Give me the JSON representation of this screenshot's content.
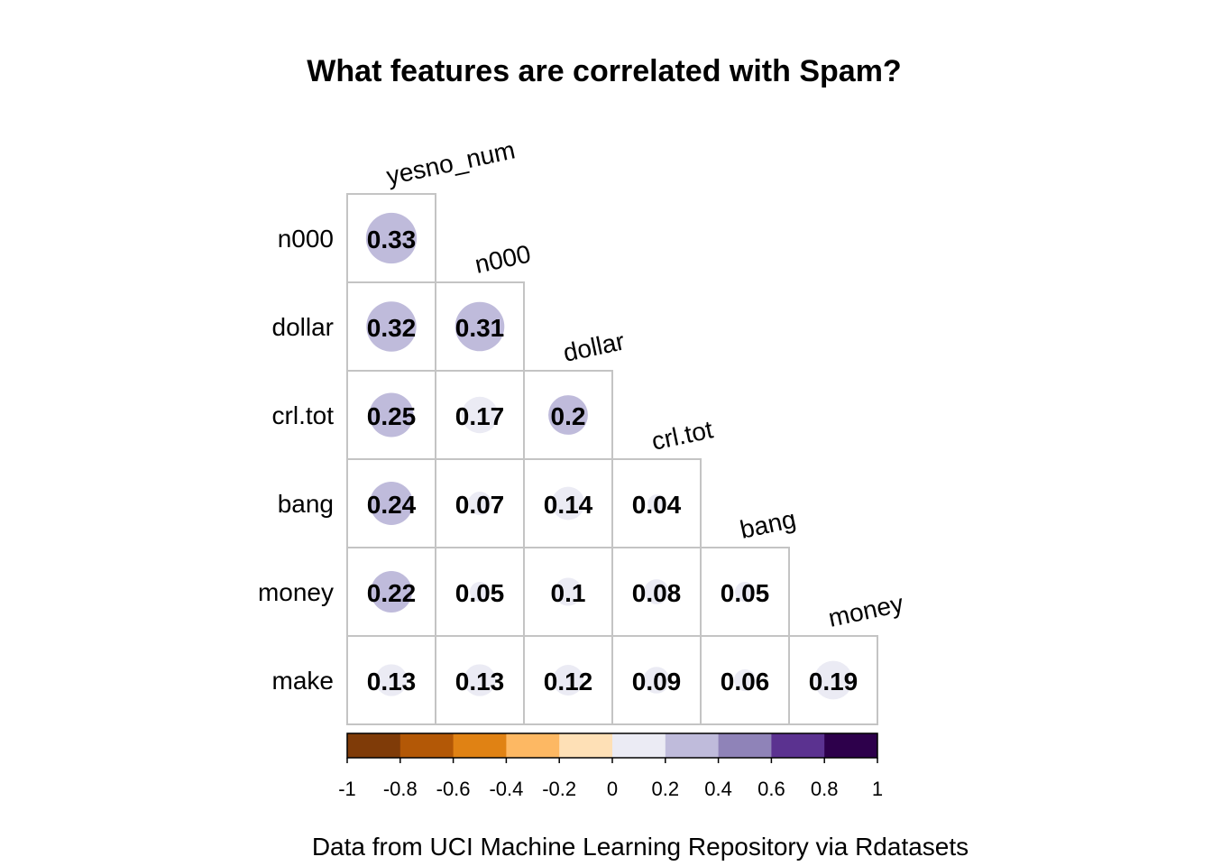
{
  "chart_data": {
    "type": "heatmap",
    "title": "What features are correlated with Spam?",
    "caption": "Data from UCI Machine Learning Repository via Rdatasets",
    "row_labels": [
      "n000",
      "dollar",
      "crl.tot",
      "bang",
      "money",
      "make"
    ],
    "col_labels": [
      "yesno_num",
      "n000",
      "dollar",
      "crl.tot",
      "bang",
      "money"
    ],
    "cells": [
      [
        0.33
      ],
      [
        0.32,
        0.31
      ],
      [
        0.25,
        0.17,
        0.2
      ],
      [
        0.24,
        0.07,
        0.14,
        0.04
      ],
      [
        0.22,
        0.05,
        0.1,
        0.08,
        0.05
      ],
      [
        0.13,
        0.13,
        0.12,
        0.09,
        0.06,
        0.19
      ]
    ],
    "colorbar": {
      "range": [
        -1,
        1
      ],
      "ticks": [
        "-1",
        "-0.8",
        "-0.6",
        "-0.4",
        "-0.2",
        "0",
        "0.2",
        "0.4",
        "0.6",
        "0.8",
        "1"
      ],
      "colors": [
        "#7f3b08",
        "#b35806",
        "#e08214",
        "#fdb863",
        "#fee0b6",
        "#ebebf4",
        "#bfbbdb",
        "#8f83b8",
        "#5b3290",
        "#2d004b"
      ]
    }
  }
}
